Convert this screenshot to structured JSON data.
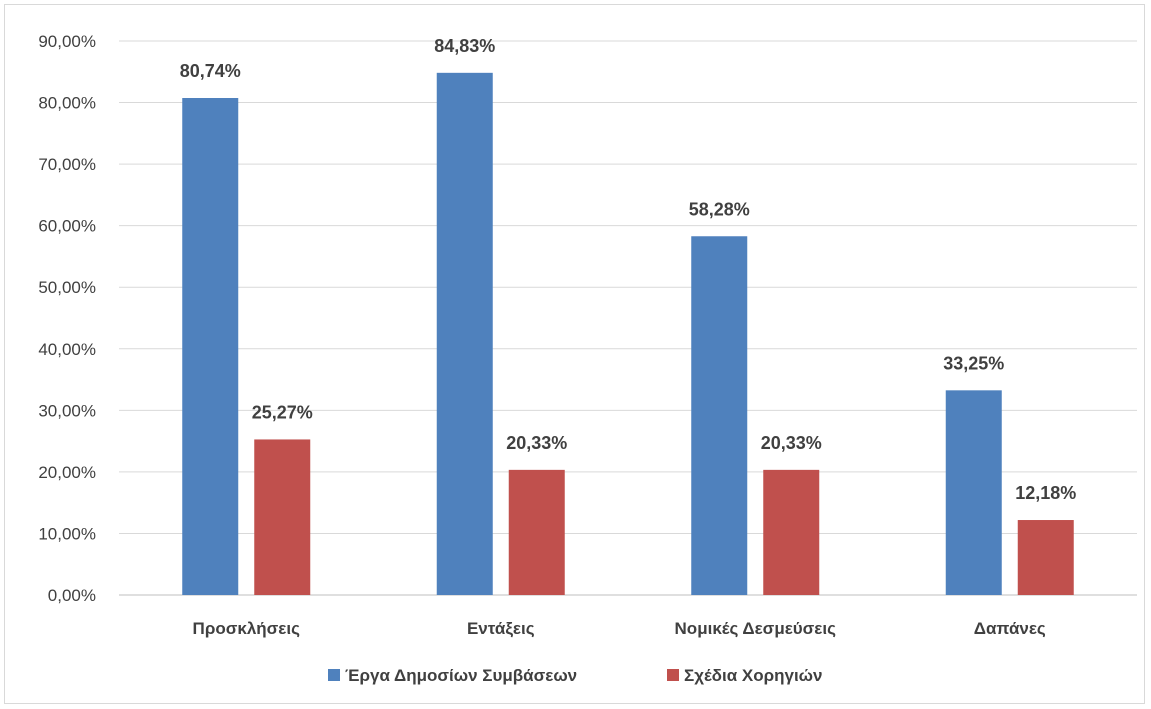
{
  "chart_data": {
    "type": "bar",
    "categories": [
      "Προσκλήσεις",
      "Εντάξεις",
      "Νομικές Δεσμεύσεις",
      "Δαπάνες"
    ],
    "series": [
      {
        "name": "Έργα Δημοσίων Συμβάσεων",
        "color": "#4f81bd",
        "values": [
          80.74,
          84.83,
          58.28,
          33.25
        ],
        "labels": [
          "80,74%",
          "84,83%",
          "58,28%",
          "33,25%"
        ]
      },
      {
        "name": "Σχέδια Χορηγιών",
        "color": "#c0504d",
        "values": [
          25.27,
          20.33,
          20.33,
          12.18
        ],
        "labels": [
          "25,27%",
          "20,33%",
          "20,33%",
          "12,18%"
        ]
      }
    ],
    "ylim": [
      0,
      90
    ],
    "yticks": [
      0,
      10,
      20,
      30,
      40,
      50,
      60,
      70,
      80,
      90
    ],
    "ytick_labels": [
      "0,00%",
      "10,00%",
      "20,00%",
      "30,00%",
      "40,00%",
      "50,00%",
      "60,00%",
      "70,00%",
      "80,00%",
      "90,00%"
    ],
    "grid": true,
    "legend_position": "bottom",
    "title": "",
    "xlabel": "",
    "ylabel": ""
  }
}
